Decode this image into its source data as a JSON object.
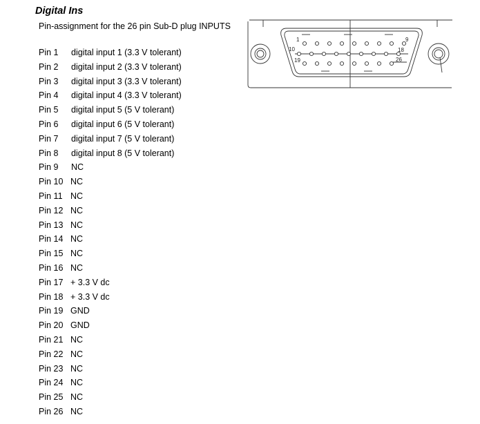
{
  "title": "Digital Ins",
  "subtitle": "Pin-assignment for the 26 pin Sub-D plug INPUTS",
  "connector": {
    "row1_start": "1",
    "row1_end": "9",
    "row2_start": "10",
    "row2_end": "18",
    "row3_start": "19",
    "row3_end": "26"
  },
  "pins": [
    {
      "label": "Pin 1",
      "desc": "digital input 1 (3.3 V tolerant)"
    },
    {
      "label": "Pin 2",
      "desc": "digital input 2 (3.3 V tolerant)"
    },
    {
      "label": "Pin 3",
      "desc": "digital input 3 (3.3 V tolerant)"
    },
    {
      "label": "Pin 4",
      "desc": "digital input 4 (3.3 V tolerant)"
    },
    {
      "label": "Pin 5",
      "desc": "digital input 5 (5 V tolerant)"
    },
    {
      "label": "Pin 6",
      "desc": "digital input 6 (5 V tolerant)"
    },
    {
      "label": "Pin 7",
      "desc": "digital input 7 (5 V tolerant)"
    },
    {
      "label": "Pin 8",
      "desc": "digital input 8 (5 V tolerant)"
    },
    {
      "label": "Pin 9",
      "desc": "NC"
    },
    {
      "label": "Pin 10",
      "desc": "NC"
    },
    {
      "label": "Pin 11",
      "desc": "NC"
    },
    {
      "label": "Pin 12",
      "desc": "NC"
    },
    {
      "label": "Pin 13",
      "desc": "NC"
    },
    {
      "label": "Pin 14",
      "desc": "NC"
    },
    {
      "label": "Pin 15",
      "desc": "NC"
    },
    {
      "label": "Pin 16",
      "desc": "NC"
    },
    {
      "label": "Pin 17",
      "desc": "+ 3.3 V dc"
    },
    {
      "label": "Pin 18",
      "desc": "+ 3.3 V dc"
    },
    {
      "label": "Pin 19",
      "desc": "GND"
    },
    {
      "label": "Pin 20",
      "desc": "GND"
    },
    {
      "label": "Pin 21",
      "desc": "NC"
    },
    {
      "label": "Pin 22",
      "desc": "NC"
    },
    {
      "label": "Pin 23",
      "desc": "NC"
    },
    {
      "label": "Pin 24",
      "desc": "NC"
    },
    {
      "label": "Pin 25",
      "desc": "NC"
    },
    {
      "label": "Pin 26",
      "desc": "NC"
    }
  ]
}
